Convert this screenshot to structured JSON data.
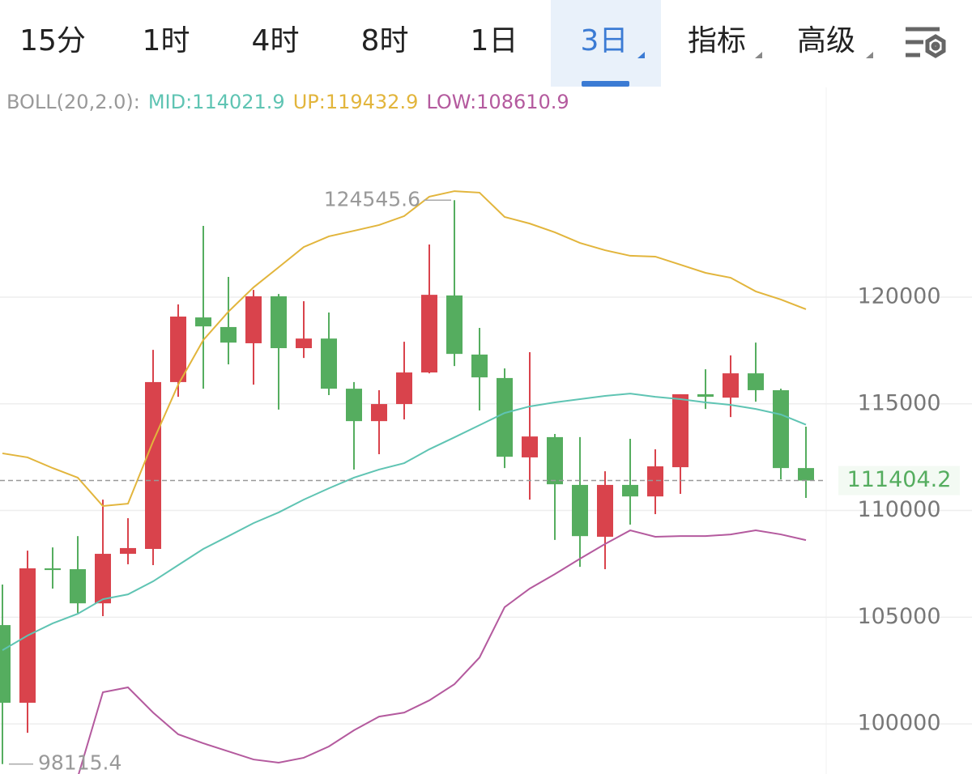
{
  "tabs": {
    "items": [
      "15分",
      "1时",
      "4时",
      "8时",
      "1日",
      "3日",
      "指标",
      "高级"
    ],
    "selected": 5
  },
  "chart_data": {
    "type": "candlestick",
    "indicator": "BOLL(20,2.0):",
    "up_color": "#d9434c",
    "down_color": "#55ad5f",
    "open": [
      104630,
      100990,
      107290,
      107250,
      105650,
      107970,
      108200,
      116020,
      119050,
      118600,
      117840,
      120040,
      117610,
      118060,
      115710,
      114190,
      114990,
      116470,
      120080,
      117310,
      116210,
      112490,
      113440,
      111200,
      108770,
      111200,
      110660,
      112030,
      115450,
      115290,
      116430,
      115640,
      111990
    ],
    "high": [
      106530,
      108120,
      108270,
      108800,
      110510,
      109640,
      117530,
      119660,
      123340,
      120950,
      120340,
      120150,
      119810,
      119280,
      116020,
      115640,
      117910,
      122470,
      124545.6,
      118560,
      116660,
      117420,
      113590,
      113440,
      111840,
      113360,
      112870,
      115450,
      116620,
      117270,
      117870,
      115710,
      113930
    ],
    "low": [
      98115.4,
      99580,
      106340,
      105200,
      105050,
      107480,
      107440,
      115330,
      115710,
      116850,
      115900,
      114730,
      117150,
      115410,
      111920,
      112640,
      114270,
      116430,
      116770,
      114690,
      111990,
      110510,
      108620,
      107360,
      107250,
      109340,
      109830,
      110780,
      114760,
      114380,
      115100,
      111460,
      110590
    ],
    "close": [
      100990,
      107290,
      107210,
      105650,
      107970,
      108240,
      116020,
      119090,
      118630,
      117870,
      120040,
      117610,
      118060,
      115710,
      114190,
      114990,
      116470,
      120110,
      117340,
      116240,
      112520,
      113470,
      111230,
      108800,
      111200,
      110660,
      112070,
      115450,
      115330,
      116430,
      115640,
      111990,
      111404.2
    ],
    "series": [
      {
        "label": "MID:114021.9",
        "color": "#5fc4b3",
        "values": [
          103450,
          104140,
          104710,
          105160,
          105840,
          106070,
          106680,
          107440,
          108200,
          108800,
          109410,
          109910,
          110510,
          111040,
          111540,
          111920,
          112220,
          112870,
          113430,
          114000,
          114570,
          114880,
          115070,
          115220,
          115370,
          115480,
          115330,
          115220,
          115070,
          114950,
          114760,
          114500,
          114021.9
        ]
      },
      {
        "label": "UP:119432.9",
        "color": "#e2b53c",
        "values": [
          112680,
          112490,
          111990,
          111540,
          110210,
          110320,
          113240,
          115900,
          117990,
          119320,
          120460,
          121400,
          122350,
          122850,
          123110,
          123380,
          123800,
          124710,
          124970,
          124900,
          123760,
          123450,
          123040,
          122540,
          122200,
          121940,
          121900,
          121520,
          121140,
          120910,
          120270,
          119890,
          119432.9
        ]
      },
      {
        "label": "LOW:108610.9",
        "color": "#b45a9e",
        "values": [
          null,
          null,
          null,
          97500,
          101480,
          101710,
          100530,
          99510,
          99090,
          98710,
          98330,
          98180,
          98410,
          98940,
          99700,
          100340,
          100530,
          101100,
          101860,
          103110,
          105470,
          106340,
          107020,
          107740,
          108430,
          109070,
          108770,
          108800,
          108800,
          108880,
          109070,
          108880,
          108610.9
        ]
      }
    ],
    "ylim": [
      97650,
      129830
    ],
    "yticks": [
      100000,
      105000,
      110000,
      115000,
      120000
    ],
    "grid": true
  }
}
